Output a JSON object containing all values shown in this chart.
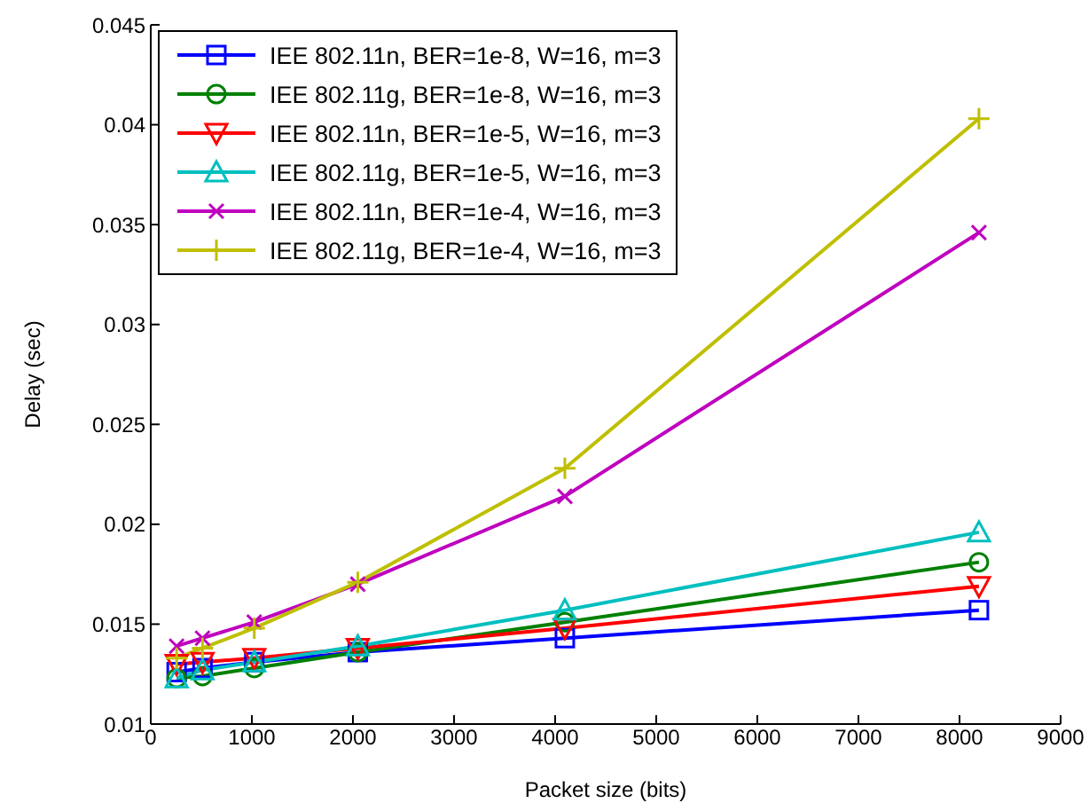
{
  "chart_data": {
    "type": "line",
    "xlabel": "Packet size (bits)",
    "ylabel": "Delay (sec)",
    "x": [
      256,
      512,
      1024,
      2048,
      4096,
      8192
    ],
    "xlim": [
      0,
      9000
    ],
    "xticks": [
      0,
      1000,
      2000,
      3000,
      4000,
      5000,
      6000,
      7000,
      8000,
      9000
    ],
    "ylim": [
      0.01,
      0.045
    ],
    "yticks": [
      0.01,
      0.015,
      0.02,
      0.025,
      0.03,
      0.035,
      0.04,
      0.045
    ],
    "grid": false,
    "legend": "top left",
    "line_style": "solid",
    "series": [
      {
        "name": "IEE 802.11n, BER=1e-8, W=16, m=3",
        "color": "#0000ff",
        "marker": "square",
        "values": [
          0.0126,
          0.0128,
          0.0131,
          0.0136,
          0.0143,
          0.0157
        ]
      },
      {
        "name": "IEE 802.11g, BER=1e-8, W=16, m=3",
        "color": "#008000",
        "marker": "circle",
        "values": [
          0.0123,
          0.0124,
          0.0128,
          0.0136,
          0.0151,
          0.0181
        ]
      },
      {
        "name": "IEE 802.11n, BER=1e-5, W=16, m=3",
        "color": "#ff0000",
        "marker": "triangle-down",
        "values": [
          0.013,
          0.0131,
          0.0133,
          0.0138,
          0.0148,
          0.0169
        ]
      },
      {
        "name": "IEE 802.11g, BER=1e-5, W=16, m=3",
        "color": "#00bfbf",
        "marker": "triangle",
        "values": [
          0.0123,
          0.0127,
          0.0131,
          0.0139,
          0.0157,
          0.0196
        ]
      },
      {
        "name": "IEE 802.11n, BER=1e-4, W=16, m=3",
        "color": "#bf00bf",
        "marker": "cross",
        "values": [
          0.0139,
          0.0143,
          0.0151,
          0.017,
          0.0214,
          0.0346
        ]
      },
      {
        "name": "IEE 802.11g, BER=1e-4, W=16, m=3",
        "color": "#bfbf00",
        "marker": "plus",
        "values": [
          0.0133,
          0.0138,
          0.0148,
          0.0171,
          0.0228,
          0.0403
        ]
      }
    ]
  }
}
